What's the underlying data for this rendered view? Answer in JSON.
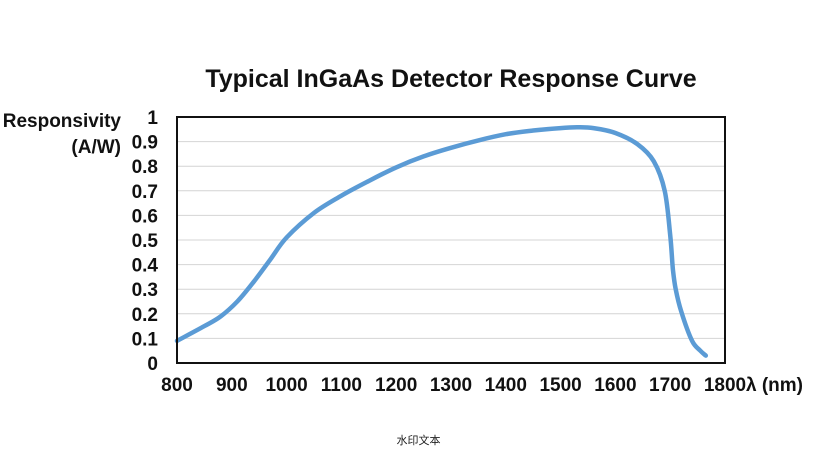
{
  "chart_data": {
    "type": "line",
    "title": "Typical InGaAs Detector Response Curve",
    "ylabel_lines": [
      "Responsivity",
      "(A/W)"
    ],
    "xlabel": "λ (nm)",
    "xlim": [
      800,
      1800
    ],
    "ylim": [
      0,
      1
    ],
    "x_ticks": [
      800,
      900,
      1000,
      1100,
      1200,
      1300,
      1400,
      1500,
      1600,
      1700,
      1800
    ],
    "y_ticks": [
      0,
      0.1,
      0.2,
      0.3,
      0.4,
      0.5,
      0.6,
      0.7,
      0.8,
      0.9,
      1
    ],
    "y_tick_labels": [
      "0",
      "0.1",
      "0.2",
      "0.3",
      "0.4",
      "0.5",
      "0.6",
      "0.7",
      "0.8",
      "0.9",
      "1"
    ],
    "grid": "horizontal",
    "series": [
      {
        "color": "#5b9bd5",
        "x": [
          800,
          850,
          880,
          910,
          940,
          970,
          1000,
          1050,
          1100,
          1150,
          1200,
          1250,
          1300,
          1350,
          1400,
          1450,
          1500,
          1530,
          1560,
          1600,
          1640,
          1670,
          1690,
          1700,
          1705,
          1710,
          1720,
          1740,
          1755,
          1765
        ],
        "y": [
          0.09,
          0.15,
          0.19,
          0.25,
          0.33,
          0.42,
          0.51,
          0.61,
          0.68,
          0.74,
          0.795,
          0.84,
          0.875,
          0.905,
          0.93,
          0.945,
          0.955,
          0.958,
          0.955,
          0.935,
          0.89,
          0.82,
          0.7,
          0.52,
          0.38,
          0.3,
          0.21,
          0.09,
          0.05,
          0.03
        ]
      }
    ]
  },
  "watermark": "水印文本"
}
